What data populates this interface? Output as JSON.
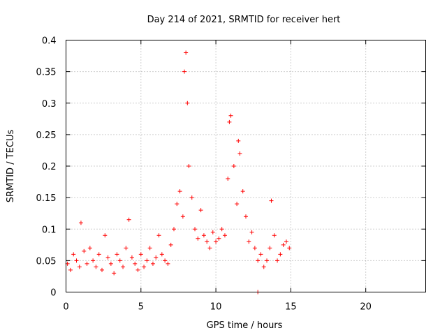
{
  "chart_data": {
    "type": "scatter",
    "title": "Day 214 of 2021, SRMTID for receiver hert",
    "xlabel": "GPS time / hours",
    "ylabel": "SRMTID / TECUs",
    "xlim": [
      0,
      24
    ],
    "ylim": [
      0,
      0.4
    ],
    "xticks": [
      0,
      5,
      10,
      15,
      20
    ],
    "xtick_labels": [
      "0",
      "5",
      "10",
      "15",
      "20"
    ],
    "yticks": [
      0,
      0.05,
      0.1,
      0.15,
      0.2,
      0.25,
      0.3,
      0.35,
      0.4
    ],
    "ytick_labels": [
      "0",
      "0.05",
      "0.1",
      "0.15",
      "0.2",
      "0.25",
      "0.3",
      "0.35",
      "0.4"
    ],
    "grid": true,
    "marker": "plus",
    "color": "#ff0000",
    "series": [
      {
        "name": "SRMTID",
        "points": [
          [
            0.1,
            0.045
          ],
          [
            0.3,
            0.035
          ],
          [
            0.5,
            0.06
          ],
          [
            0.7,
            0.05
          ],
          [
            0.9,
            0.04
          ],
          [
            1.0,
            0.11
          ],
          [
            1.2,
            0.065
          ],
          [
            1.4,
            0.045
          ],
          [
            1.6,
            0.07
          ],
          [
            1.8,
            0.05
          ],
          [
            2.0,
            0.04
          ],
          [
            2.2,
            0.06
          ],
          [
            2.4,
            0.035
          ],
          [
            2.6,
            0.09
          ],
          [
            2.8,
            0.055
          ],
          [
            3.0,
            0.045
          ],
          [
            3.2,
            0.03
          ],
          [
            3.4,
            0.06
          ],
          [
            3.6,
            0.05
          ],
          [
            3.8,
            0.04
          ],
          [
            4.0,
            0.07
          ],
          [
            4.2,
            0.115
          ],
          [
            4.4,
            0.055
          ],
          [
            4.6,
            0.045
          ],
          [
            4.8,
            0.035
          ],
          [
            5.0,
            0.06
          ],
          [
            5.2,
            0.04
          ],
          [
            5.4,
            0.05
          ],
          [
            5.6,
            0.07
          ],
          [
            5.8,
            0.045
          ],
          [
            6.0,
            0.055
          ],
          [
            6.2,
            0.09
          ],
          [
            6.4,
            0.06
          ],
          [
            6.6,
            0.05
          ],
          [
            6.8,
            0.045
          ],
          [
            7.0,
            0.075
          ],
          [
            7.2,
            0.1
          ],
          [
            7.4,
            0.14
          ],
          [
            7.6,
            0.16
          ],
          [
            7.8,
            0.12
          ],
          [
            7.9,
            0.35
          ],
          [
            8.0,
            0.38
          ],
          [
            8.1,
            0.3
          ],
          [
            8.2,
            0.2
          ],
          [
            8.4,
            0.15
          ],
          [
            8.6,
            0.1
          ],
          [
            8.8,
            0.085
          ],
          [
            9.0,
            0.13
          ],
          [
            9.2,
            0.09
          ],
          [
            9.4,
            0.08
          ],
          [
            9.6,
            0.07
          ],
          [
            9.8,
            0.095
          ],
          [
            10.0,
            0.08
          ],
          [
            10.2,
            0.085
          ],
          [
            10.4,
            0.1
          ],
          [
            10.6,
            0.09
          ],
          [
            10.8,
            0.18
          ],
          [
            10.9,
            0.27
          ],
          [
            11.0,
            0.28
          ],
          [
            11.2,
            0.2
          ],
          [
            11.4,
            0.14
          ],
          [
            11.5,
            0.24
          ],
          [
            11.6,
            0.22
          ],
          [
            11.8,
            0.16
          ],
          [
            12.0,
            0.12
          ],
          [
            12.2,
            0.08
          ],
          [
            12.4,
            0.095
          ],
          [
            12.6,
            0.07
          ],
          [
            12.8,
            0.05
          ],
          [
            12.8,
            0.0
          ],
          [
            13.0,
            0.06
          ],
          [
            13.2,
            0.04
          ],
          [
            13.4,
            0.05
          ],
          [
            13.6,
            0.07
          ],
          [
            13.7,
            0.145
          ],
          [
            13.9,
            0.09
          ],
          [
            14.1,
            0.05
          ],
          [
            14.3,
            0.06
          ],
          [
            14.5,
            0.075
          ],
          [
            14.7,
            0.08
          ],
          [
            14.9,
            0.07
          ]
        ]
      }
    ]
  }
}
